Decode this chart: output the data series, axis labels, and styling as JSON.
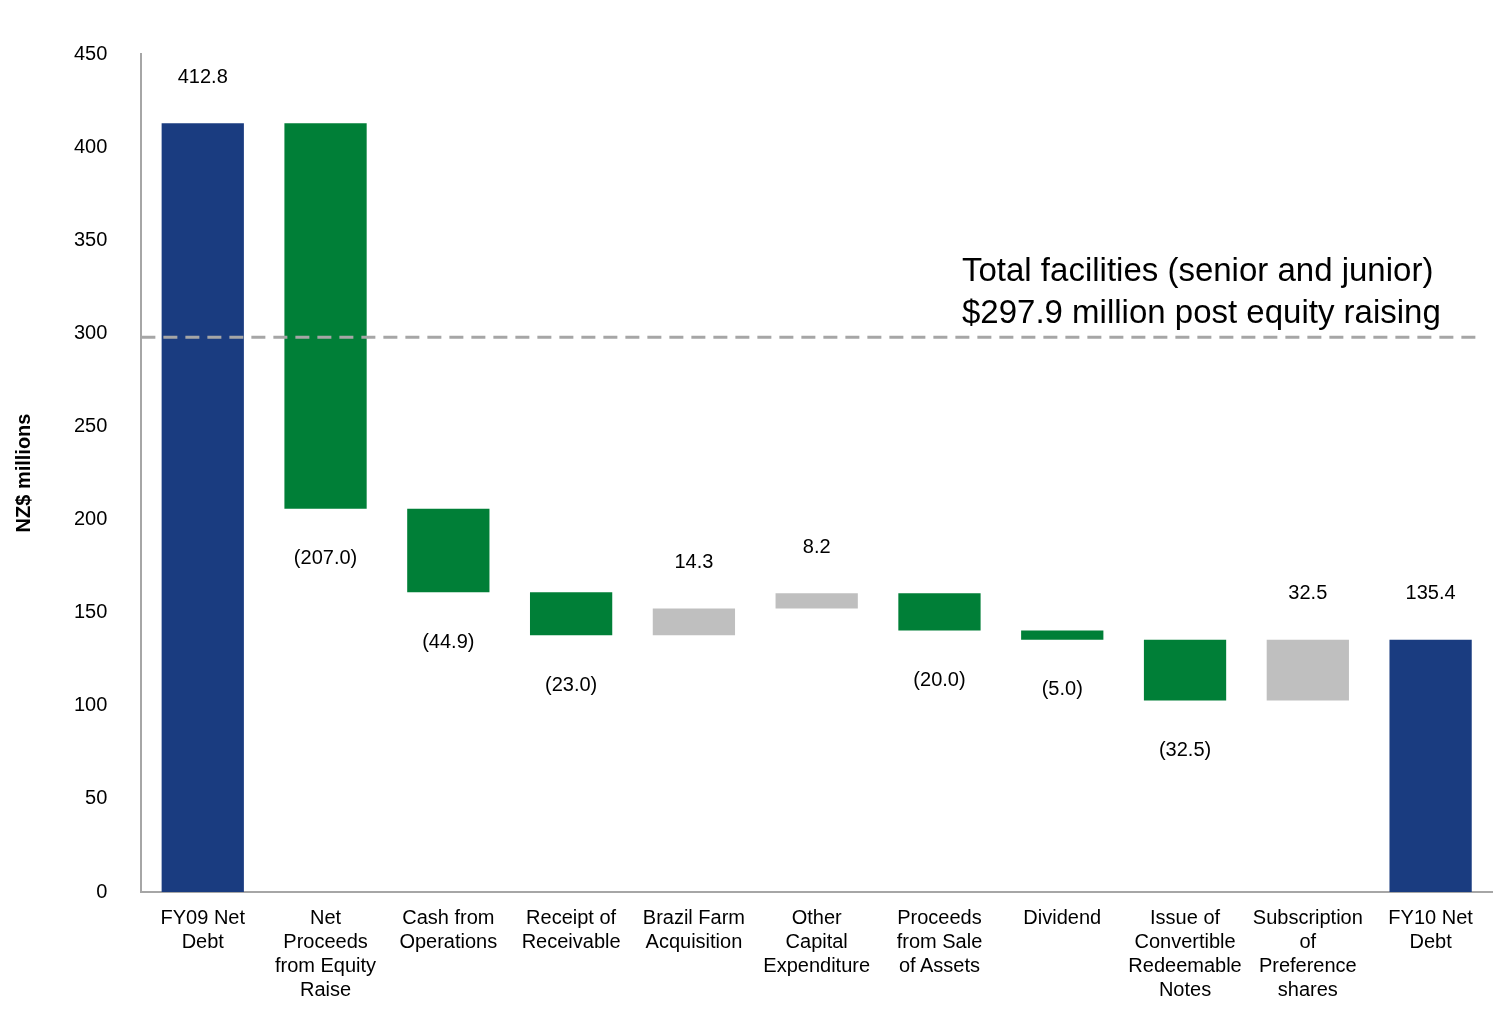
{
  "chart_data": {
    "type": "bar",
    "ylabel": "NZ$ millions",
    "categories": [
      "FY09 Net Debt",
      "Net Proceeds from Equity Raise",
      "Cash from Operations",
      "Receipt of Receivable",
      "Brazil Farm Acquisition",
      "Other Capital Expenditure",
      "Proceeds from Sale of Assets",
      "Dividend",
      "Issue of Convertible Redeemable Notes",
      "Subscription of Preference shares",
      "FY10 Net Debt"
    ],
    "values": [
      412.8,
      -207.0,
      -44.9,
      -23.0,
      14.3,
      8.2,
      -20.0,
      -5.0,
      -32.5,
      32.5,
      135.4
    ],
    "base": [
      0,
      412.8,
      205.8,
      160.9,
      137.9,
      152.2,
      160.4,
      140.4,
      135.4,
      102.9,
      0
    ],
    "colors": [
      "#1a3c80",
      "#007f37",
      "#007f37",
      "#007f37",
      "#bfbfbf",
      "#bfbfbf",
      "#007f37",
      "#007f37",
      "#007f37",
      "#bfbfbf",
      "#1a3c80"
    ],
    "value_labels": [
      "412.8",
      "(207.0)",
      "(44.9)",
      "(23.0)",
      "14.3",
      "8.2",
      "(20.0)",
      "(5.0)",
      "(32.5)",
      "32.5",
      "135.4"
    ],
    "ylim": [
      0,
      450
    ],
    "yticks": [
      0,
      50,
      100,
      150,
      200,
      250,
      300,
      350,
      400,
      450
    ],
    "grid": false,
    "legend": false,
    "ref_lines": [
      {
        "axis": "y",
        "value": 297.9,
        "label": "Total facilities (senior and junior)\n$297.9 million post equity raising",
        "color": "#a6a6a6",
        "line_style": "dashed"
      }
    ]
  }
}
